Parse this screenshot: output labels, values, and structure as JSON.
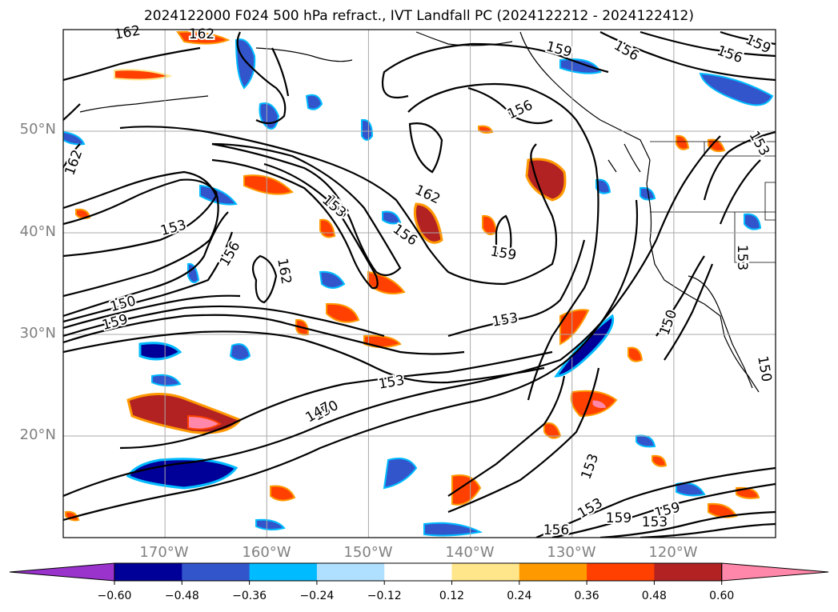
{
  "title": "2024122000 F024 500 hPa refract., IVT Landfall PC (2024122212 - 2024122412)",
  "map": {
    "region": "North Pacific / West coast of North America",
    "projection": "equirectangular",
    "lon_range": [
      -180,
      -110
    ],
    "lat_range": [
      10,
      60
    ],
    "gridlines": true,
    "lat_labels": [
      "50°N",
      "40°N",
      "30°N",
      "20°N"
    ],
    "lon_labels": [
      "170°W",
      "160°W",
      "150°W",
      "140°W",
      "130°W",
      "120°W"
    ],
    "contour_levels": [
      {
        "label": "162"
      },
      {
        "label": "162"
      },
      {
        "label": "162"
      },
      {
        "label": "162"
      },
      {
        "label": "162"
      },
      {
        "label": "159"
      },
      {
        "label": "159"
      },
      {
        "label": "159"
      },
      {
        "label": "159"
      },
      {
        "label": "159"
      },
      {
        "label": "159"
      },
      {
        "label": "156"
      },
      {
        "label": "156"
      },
      {
        "label": "156"
      },
      {
        "label": "156"
      },
      {
        "label": "156"
      },
      {
        "label": "156"
      },
      {
        "label": "156"
      },
      {
        "label": "153"
      },
      {
        "label": "153"
      },
      {
        "label": "153"
      },
      {
        "label": "153"
      },
      {
        "label": "153"
      },
      {
        "label": "153"
      },
      {
        "label": "153"
      },
      {
        "label": "153"
      },
      {
        "label": "153"
      },
      {
        "label": "150"
      },
      {
        "label": "150"
      },
      {
        "label": "150"
      },
      {
        "label": "150"
      },
      {
        "label": "147"
      }
    ]
  },
  "colorbar": {
    "extend": "both",
    "ticks": [
      "−0.60",
      "−0.48",
      "−0.36",
      "−0.24",
      "−0.12",
      "0.12",
      "0.24",
      "0.36",
      "0.48",
      "0.60"
    ],
    "colors": [
      "#9933cc",
      "#000099",
      "#3355cc",
      "#00bbff",
      "#b0e0ff",
      "#ffffff",
      "#ffe68a",
      "#ff9900",
      "#ff4000",
      "#b22222",
      "#ff88aa"
    ]
  }
}
